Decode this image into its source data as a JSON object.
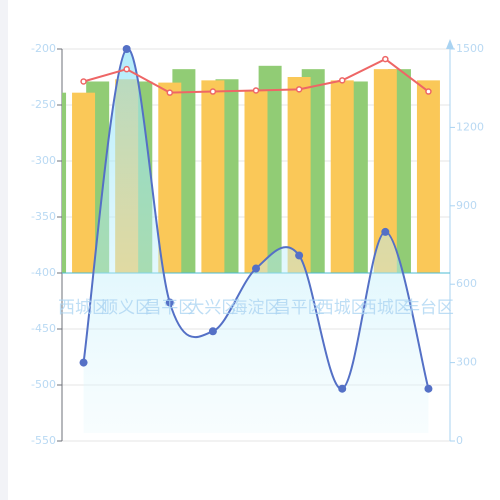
{
  "chart_data": {
    "type": "combo",
    "categories": [
      "西城区",
      "顺义区",
      "昌平区",
      "大兴区",
      "海淀区",
      "昌平区",
      "西城区",
      "西城区",
      "丰台区"
    ],
    "ylim": [
      -550,
      -200
    ],
    "yticks": [
      -200,
      -250,
      -300,
      -350,
      -400,
      -450,
      -500,
      -550
    ],
    "y2lim": [
      0,
      1500
    ],
    "y2ticks": [
      0,
      300,
      600,
      900,
      1200,
      1500
    ],
    "grid": true,
    "series": [
      {
        "type": "bar",
        "color": "#91cc75",
        "values": [
          -239,
          -229,
          -229,
          -218,
          -227,
          -215,
          -218,
          -229,
          -218
        ]
      },
      {
        "type": "bar",
        "color": "#fac858",
        "values": [
          -239,
          -227,
          -230,
          -228,
          -237,
          -225,
          -228,
          -218,
          -228
        ]
      },
      {
        "type": "line",
        "color": "#ee6666",
        "values": [
          -229,
          -218,
          -239,
          -238,
          -237,
          -236,
          -228,
          -209,
          -238
        ]
      },
      {
        "type": "area",
        "axis": "y2",
        "color": "#5470c6",
        "values": [
          300,
          1500,
          530,
          420,
          660,
          710,
          200,
          800,
          200
        ]
      }
    ]
  }
}
